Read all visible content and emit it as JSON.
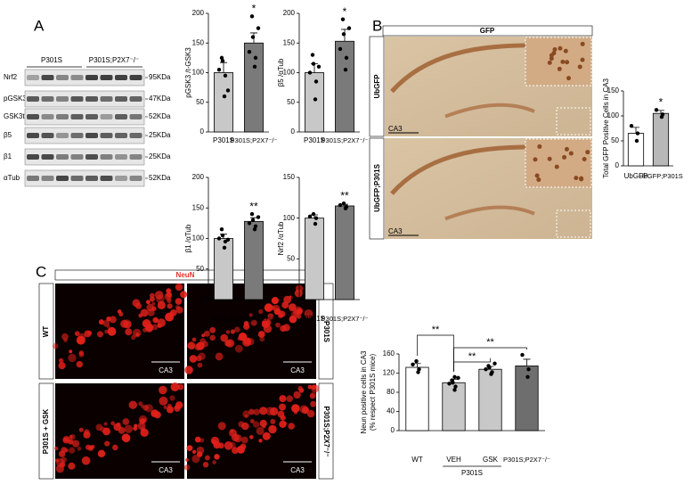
{
  "panel_labels": [
    "A",
    "B",
    "C"
  ],
  "blot": {
    "groups": [
      "P301S",
      "P301S;P2X7⁻/⁻"
    ],
    "rows": [
      "Nrf2",
      "pGSK3",
      "GSK3t",
      "β5",
      "β1",
      "αTub"
    ],
    "sizes": [
      "95KDa",
      "47KDa",
      "52KDa",
      "25KDa",
      "25KDa",
      "52KDa"
    ]
  },
  "micrographs_b": {
    "header": "GFP",
    "rows": [
      "UbGFP",
      "UbGFP;P301S"
    ],
    "scale_labels": [
      "CA3",
      "CA3"
    ]
  },
  "micrographs_c": {
    "header": "NeuN",
    "left_labels": [
      "WT",
      "P301S + GSK"
    ],
    "right_labels": [
      "P301S",
      "P301S;P2X7⁻/⁻"
    ],
    "scale_labels": [
      "CA3",
      "CA3",
      "CA3",
      "CA3"
    ]
  },
  "chart_data": [
    {
      "type": "bar",
      "y_label": [
        "pGSK3 /t-GSK3"
      ],
      "categories": [
        "P301S",
        "P301S;P2X7⁻/⁻"
      ],
      "values": [
        100,
        150
      ],
      "errors": [
        17,
        17
      ],
      "points": [
        [
          60,
          95,
          105,
          120,
          125,
          70
        ],
        [
          110,
          125,
          135,
          160,
          195,
          175
        ]
      ],
      "colors": [
        "#c8c8c8",
        "#7a7a7a"
      ],
      "ylim": [
        0,
        200
      ],
      "yticks": [
        0,
        50,
        100,
        150,
        200
      ],
      "annotations": [
        "*"
      ]
    },
    {
      "type": "bar",
      "y_label": [
        "β5 /αTub"
      ],
      "categories": [
        "P301S",
        "P301S;P2X7⁻/⁻"
      ],
      "values": [
        100,
        153
      ],
      "errors": [
        15,
        20
      ],
      "points": [
        [
          55,
          85,
          100,
          115,
          130,
          110
        ],
        [
          105,
          125,
          140,
          165,
          190,
          175
        ]
      ],
      "colors": [
        "#c8c8c8",
        "#7a7a7a"
      ],
      "ylim": [
        0,
        200
      ],
      "yticks": [
        0,
        50,
        100,
        150,
        200
      ],
      "annotations": [
        "*"
      ]
    },
    {
      "type": "bar",
      "y_label": [
        "β1 /αTub"
      ],
      "categories": [
        "P301S",
        "P301S;P2X7⁻/⁻"
      ],
      "values": [
        100,
        128
      ],
      "errors": [
        7,
        6
      ],
      "points": [
        [
          85,
          95,
          100,
          105,
          115,
          98
        ],
        [
          115,
          120,
          125,
          130,
          140,
          135
        ]
      ],
      "colors": [
        "#c8c8c8",
        "#7a7a7a"
      ],
      "ylim": [
        0,
        200
      ],
      "yticks": [
        0,
        50,
        100,
        150,
        200
      ],
      "annotations": [
        "**"
      ]
    },
    {
      "type": "bar",
      "y_label": [
        "Nrf2 /αTub"
      ],
      "categories": [
        "P301S",
        "P301S;P2X7⁻/⁻"
      ],
      "values": [
        100,
        115
      ],
      "errors": [
        4,
        2
      ],
      "points": [
        [
          93,
          100,
          102,
          105
        ],
        [
          112,
          114,
          116,
          118
        ]
      ],
      "colors": [
        "#c8c8c8",
        "#7a7a7a"
      ],
      "ylim": [
        0,
        150
      ],
      "yticks": [
        0,
        50,
        100,
        150
      ],
      "annotations": [
        "**"
      ]
    },
    {
      "type": "bar",
      "y_label": [
        "Total GFP Positive Cells in CA3"
      ],
      "categories": [
        "UbGFP",
        "UbGFP;P301S"
      ],
      "values": [
        65,
        105
      ],
      "errors": [
        12,
        6
      ],
      "points": [
        [
          50,
          65,
          80
        ],
        [
          98,
          103,
          112
        ]
      ],
      "colors": [
        "#ffffff",
        "#b8b8b8"
      ],
      "ylim": [
        0,
        150
      ],
      "yticks": [
        0,
        50,
        100,
        150
      ],
      "annotations": [
        "*"
      ]
    },
    {
      "type": "bar",
      "y_label": [
        "Neun positive cells in CA3",
        "(% respect P301S mice)"
      ],
      "categories": [
        "WT",
        "VEH",
        "GSK",
        "P301S;P2X7⁻/⁻"
      ],
      "group_label": "P301S",
      "values": [
        132,
        100,
        128,
        135
      ],
      "errors": [
        8,
        7,
        6,
        14
      ],
      "points": [
        [
          122,
          128,
          138,
          145
        ],
        [
          85,
          92,
          98,
          100,
          105,
          110,
          112
        ],
        [
          118,
          122,
          128,
          132,
          135,
          140
        ],
        [
          112,
          128,
          158
        ]
      ],
      "colors": [
        "#ffffff",
        "#c8c8c8",
        "#c8c8c8",
        "#6e6e6e"
      ],
      "ylim": [
        0,
        160
      ],
      "yticks": [
        0,
        40,
        80,
        120,
        160
      ],
      "annotations": [
        "**",
        "**",
        "**"
      ]
    }
  ]
}
